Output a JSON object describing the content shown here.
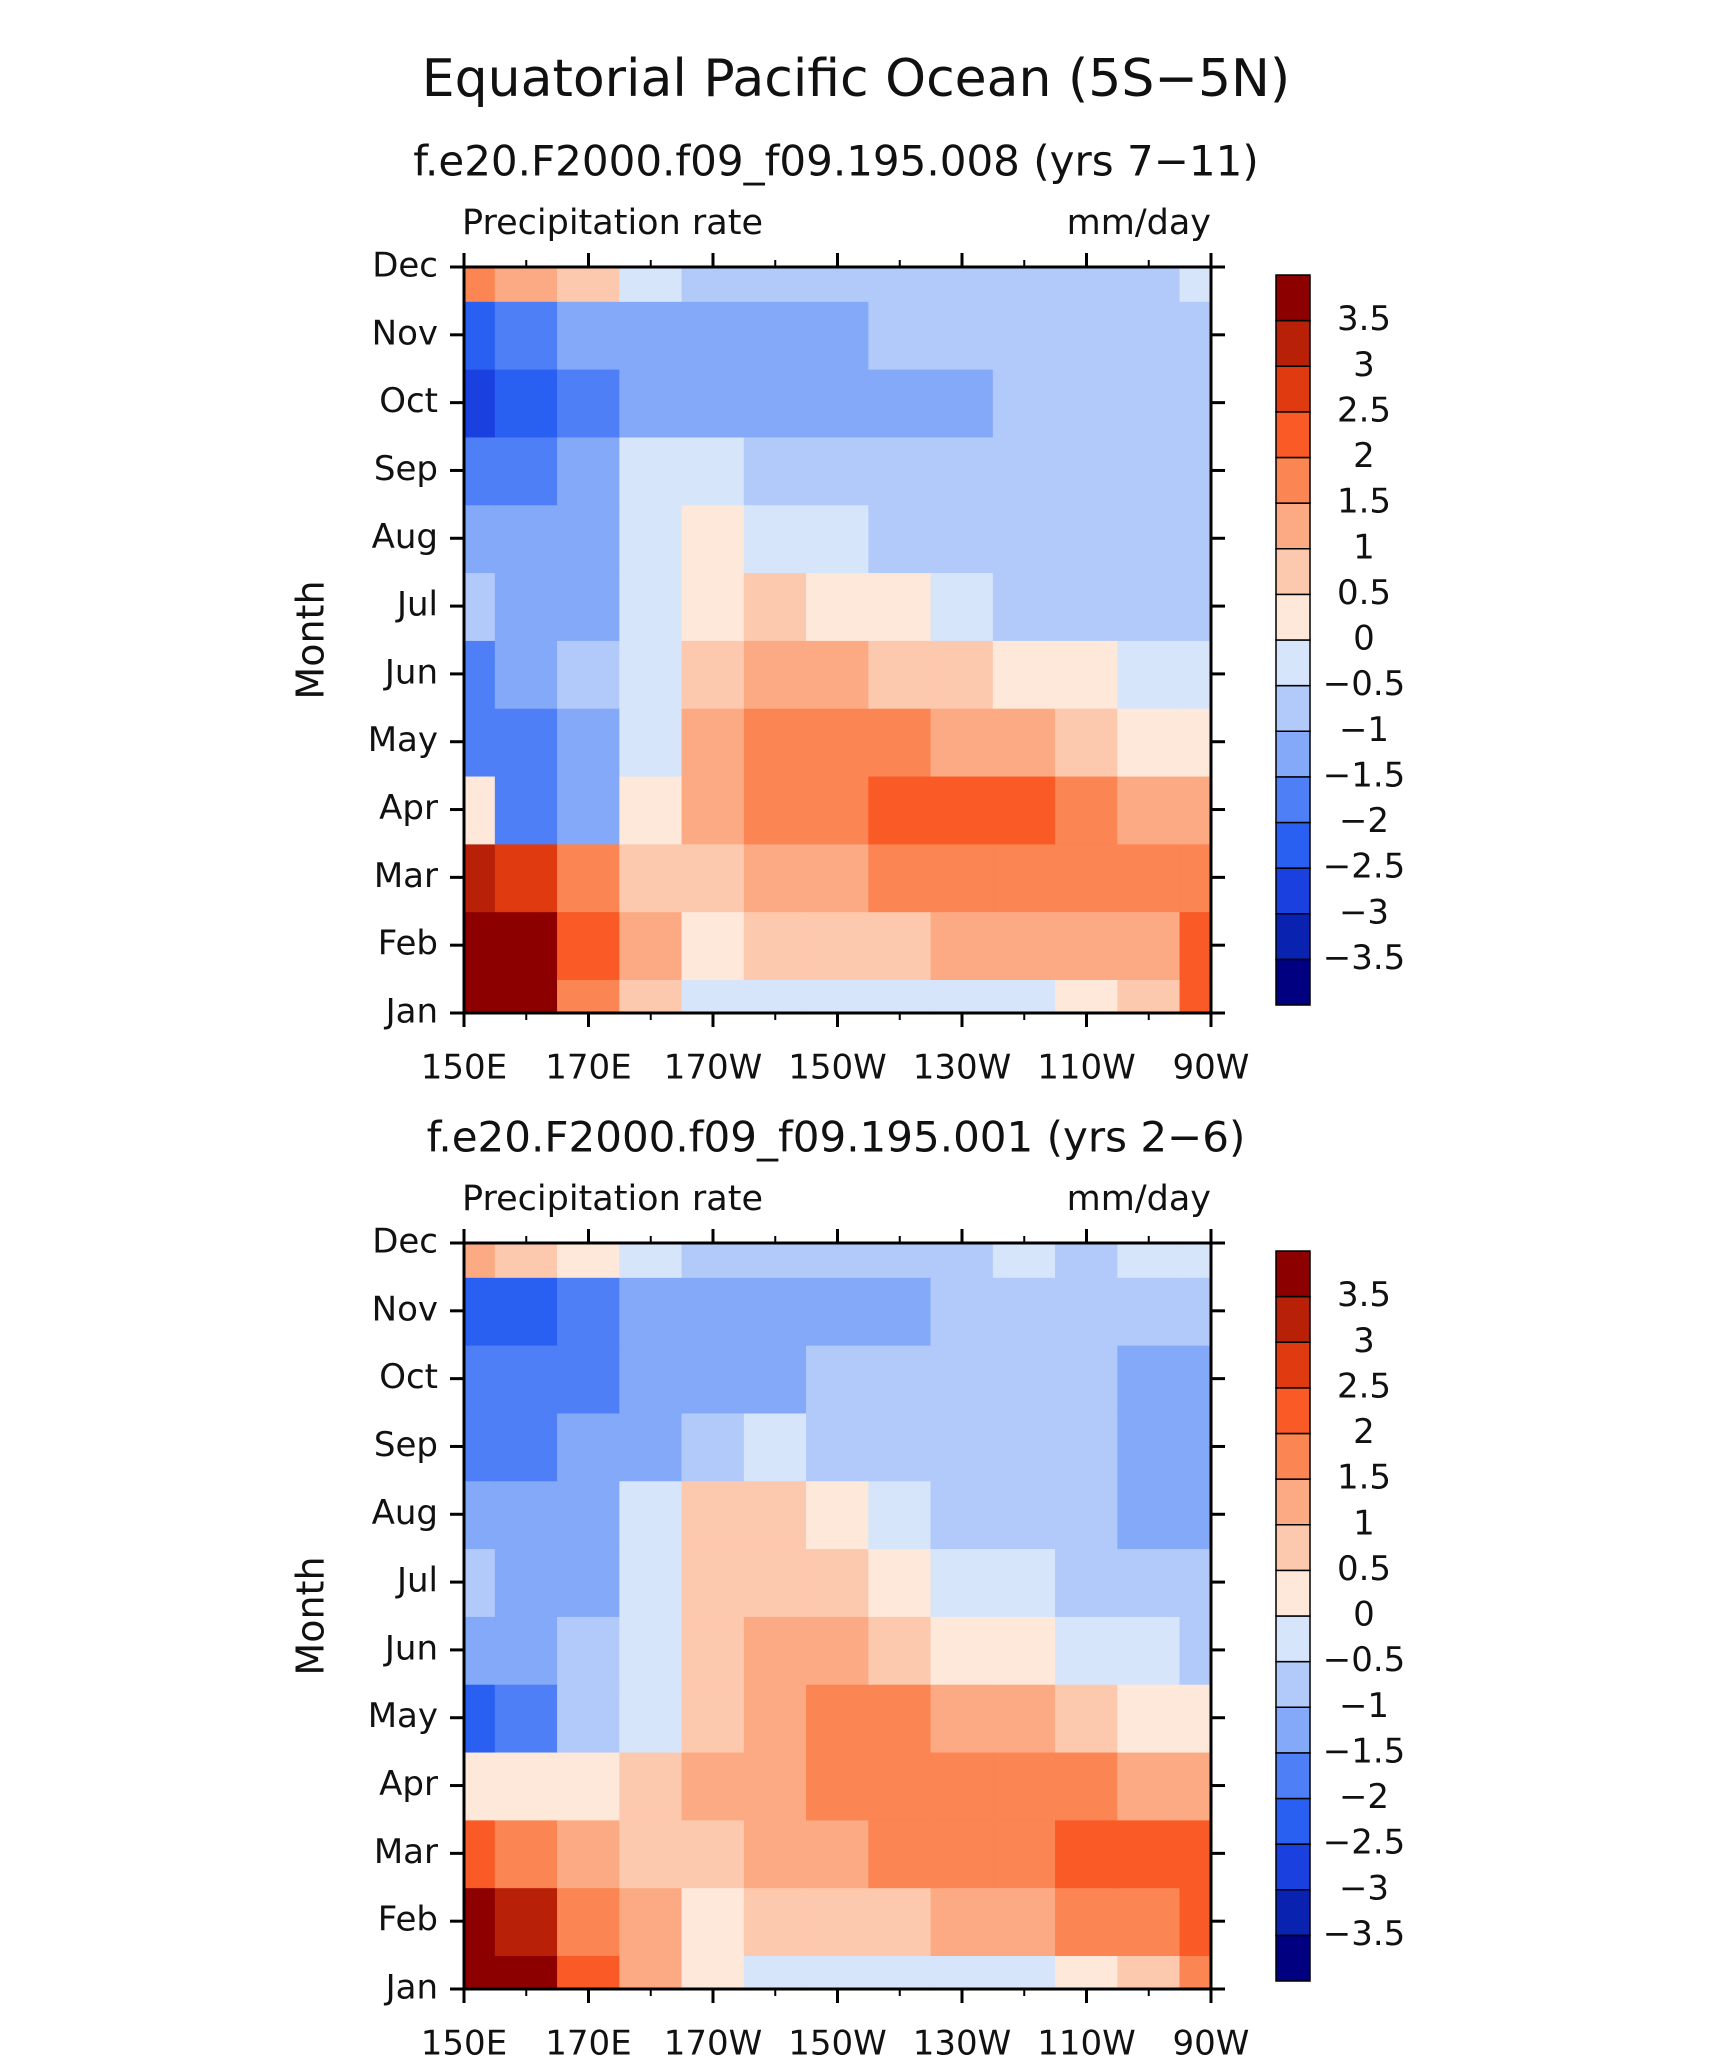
{
  "title": "Equatorial Pacific Ocean (5S−5N)",
  "chart_data": [
    {
      "type": "contour",
      "subtitle": "f.e20.F2000.f09_f09.195.008 (yrs 7−11)",
      "left_label": "Precipitation rate",
      "right_label": "mm/day",
      "y_label": "Month",
      "x": [
        150,
        160,
        170,
        180,
        190,
        200,
        210,
        220,
        230,
        240,
        250,
        260,
        270
      ],
      "xlim": [
        150,
        270
      ],
      "xticks": [
        {
          "value": 150,
          "label": "150E"
        },
        {
          "value": 170,
          "label": "170E"
        },
        {
          "value": 190,
          "label": "170W"
        },
        {
          "value": 210,
          "label": "150W"
        },
        {
          "value": 230,
          "label": "130W"
        },
        {
          "value": 250,
          "label": "110W"
        },
        {
          "value": 270,
          "label": "90W"
        }
      ],
      "xminorticks": [
        160,
        180,
        200,
        220,
        240,
        260
      ],
      "categories": [
        "Jan",
        "Feb",
        "Mar",
        "Apr",
        "May",
        "Jun",
        "Jul",
        "Aug",
        "Sep",
        "Oct",
        "Nov",
        "Dec"
      ],
      "values": [
        [
          3.8,
          3.8,
          1.5,
          0.5,
          -0.3,
          -0.5,
          -0.5,
          -0.3,
          -0.3,
          -0.1,
          0.2,
          0.5,
          2
        ],
        [
          3.8,
          3.5,
          2,
          1,
          0.3,
          0.5,
          0.7,
          0.8,
          1,
          1.2,
          1.3,
          1.4,
          2
        ],
        [
          3,
          2.5,
          1.5,
          0.8,
          0.8,
          1,
          1.3,
          1.5,
          1.6,
          1.7,
          1.8,
          1.6,
          1.7
        ],
        [
          0,
          -2,
          -1.5,
          0.3,
          1,
          1.6,
          1.8,
          2,
          2.2,
          2,
          1.5,
          1.2,
          1
        ],
        [
          -2,
          -2,
          -1.2,
          -0.3,
          1.2,
          1.6,
          1.6,
          1.5,
          1.3,
          1,
          0.7,
          0.4,
          0.1
        ],
        [
          -1.8,
          -1.2,
          -1,
          -0.3,
          0.6,
          1,
          1,
          0.8,
          0.5,
          0.2,
          0,
          -0.2,
          -0.5
        ],
        [
          -1,
          -1.3,
          -1.2,
          -0.2,
          0.4,
          0.5,
          0.3,
          0,
          -0.4,
          -0.6,
          -0.6,
          -0.7,
          -0.8
        ],
        [
          -1.5,
          -1.2,
          -1.3,
          -0.3,
          0,
          -0.2,
          -0.4,
          -0.6,
          -0.7,
          -0.8,
          -0.8,
          -0.8,
          -0.9
        ],
        [
          -2,
          -1.6,
          -1.2,
          -0.4,
          -0.4,
          -0.6,
          -0.8,
          -0.9,
          -0.9,
          -0.9,
          -0.8,
          -0.8,
          -1
        ],
        [
          -2.8,
          -2.4,
          -1.6,
          -1.3,
          -1.2,
          -1.2,
          -1.2,
          -1.3,
          -1.1,
          -0.8,
          -0.7,
          -0.7,
          -1
        ],
        [
          -2.3,
          -1.8,
          -1.4,
          -1.5,
          -1.4,
          -1.3,
          -1.2,
          -1,
          -0.9,
          -0.8,
          -0.7,
          -0.7,
          -0.8
        ],
        [
          1.5,
          1,
          0.5,
          -0.3,
          -1,
          -1,
          -0.9,
          -0.8,
          -0.7,
          -0.7,
          -0.6,
          -0.6,
          -0.5
        ]
      ],
      "levels": [
        {
          "value": -3.5,
          "label": "−3.5"
        },
        {
          "value": -3,
          "label": "−3"
        },
        {
          "value": -2.5,
          "label": "−2.5"
        },
        {
          "value": -2,
          "label": "−2"
        },
        {
          "value": -1.5,
          "label": "−1.5"
        },
        {
          "value": -1,
          "label": "−1"
        },
        {
          "value": -0.5,
          "label": "−0.5"
        },
        0,
        0.5,
        1,
        1.5,
        2,
        2.5,
        3,
        3.5
      ],
      "colors": [
        "#000080",
        "#0a22b0",
        "#1a40e0",
        "#2a60f2",
        "#4f7ff6",
        "#84a9f8",
        "#b2caf9",
        "#d6e5fa",
        "#fde8da",
        "#fdc9ae",
        "#fcaa84",
        "#fb8553",
        "#fa5a26",
        "#e03a10",
        "#b82008",
        "#8c0000"
      ]
    },
    {
      "type": "contour",
      "subtitle": "f.e20.F2000.f09_f09.195.001 (yrs 2−6)",
      "left_label": "Precipitation rate",
      "right_label": "mm/day",
      "y_label": "Month",
      "x": [
        150,
        160,
        170,
        180,
        190,
        200,
        210,
        220,
        230,
        240,
        250,
        260,
        270
      ],
      "xlim": [
        150,
        270
      ],
      "xticks": [
        {
          "value": 150,
          "label": "150E"
        },
        {
          "value": 170,
          "label": "170E"
        },
        {
          "value": 190,
          "label": "170W"
        },
        {
          "value": 210,
          "label": "150W"
        },
        {
          "value": 230,
          "label": "130W"
        },
        {
          "value": 250,
          "label": "110W"
        },
        {
          "value": 270,
          "label": "90W"
        }
      ],
      "xminorticks": [
        160,
        180,
        200,
        220,
        240,
        260
      ],
      "categories": [
        "Jan",
        "Feb",
        "Mar",
        "Apr",
        "May",
        "Jun",
        "Jul",
        "Aug",
        "Sep",
        "Oct",
        "Nov",
        "Dec"
      ],
      "values": [
        [
          3.8,
          3.5,
          2,
          1,
          0,
          -0.3,
          -0.4,
          -0.3,
          -0.2,
          -0.2,
          0.1,
          0.5,
          1.5
        ],
        [
          3.7,
          3,
          1.8,
          1.2,
          0.2,
          0.5,
          0.8,
          0.9,
          1,
          1.2,
          1.5,
          1.7,
          2
        ],
        [
          2,
          1.5,
          1,
          0.8,
          0.8,
          1,
          1.3,
          1.5,
          1.6,
          1.8,
          2,
          2.1,
          2.1
        ],
        [
          0.3,
          0.2,
          0.3,
          0.6,
          1,
          1.3,
          1.6,
          1.7,
          1.8,
          1.9,
          1.6,
          1.3,
          1
        ],
        [
          -2.5,
          -2,
          -1,
          -0.4,
          0.8,
          1.2,
          1.5,
          1.5,
          1.3,
          1,
          0.6,
          0.3,
          0
        ],
        [
          -1.5,
          -1.3,
          -1,
          -0.5,
          0.5,
          1,
          1,
          0.7,
          0.4,
          0.1,
          -0.2,
          -0.4,
          -0.6
        ],
        [
          -1,
          -1.2,
          -1.1,
          -0.3,
          0.6,
          0.7,
          0.5,
          0.1,
          -0.3,
          -0.5,
          -0.7,
          -0.8,
          -1
        ],
        [
          -1.2,
          -1.5,
          -1.1,
          -0.2,
          0.7,
          0.5,
          0,
          -0.4,
          -0.6,
          -0.8,
          -0.9,
          -1.1,
          -1.1
        ],
        [
          -2,
          -1.7,
          -1.3,
          -1.1,
          -0.6,
          -0.5,
          -0.8,
          -0.9,
          -0.8,
          -0.8,
          -0.8,
          -1.1,
          -1.1
        ],
        [
          -2,
          -1.8,
          -1.6,
          -1.4,
          -1.2,
          -1.1,
          -1,
          -1,
          -0.8,
          -0.8,
          -0.8,
          -1.1,
          -1.2
        ],
        [
          -2.2,
          -2.3,
          -1.7,
          -1.4,
          -1.2,
          -1.3,
          -1.2,
          -1.1,
          -0.8,
          -0.7,
          -0.7,
          -0.8,
          -0.9
        ],
        [
          1,
          0.6,
          0.4,
          -0.5,
          -0.8,
          -0.8,
          -0.9,
          -0.7,
          -0.6,
          -0.5,
          -0.6,
          -0.5,
          -0.4
        ]
      ],
      "levels": [
        {
          "value": -3.5,
          "label": "−3.5"
        },
        {
          "value": -3,
          "label": "−3"
        },
        {
          "value": -2.5,
          "label": "−2.5"
        },
        {
          "value": -2,
          "label": "−2"
        },
        {
          "value": -1.5,
          "label": "−1.5"
        },
        {
          "value": -1,
          "label": "−1"
        },
        {
          "value": -0.5,
          "label": "−0.5"
        },
        0,
        0.5,
        1,
        1.5,
        2,
        2.5,
        3,
        3.5
      ],
      "colors": [
        "#000080",
        "#0a22b0",
        "#1a40e0",
        "#2a60f2",
        "#4f7ff6",
        "#84a9f8",
        "#b2caf9",
        "#d6e5fa",
        "#fde8da",
        "#fdc9ae",
        "#fcaa84",
        "#fb8553",
        "#fa5a26",
        "#e03a10",
        "#b82008",
        "#8c0000"
      ]
    }
  ]
}
